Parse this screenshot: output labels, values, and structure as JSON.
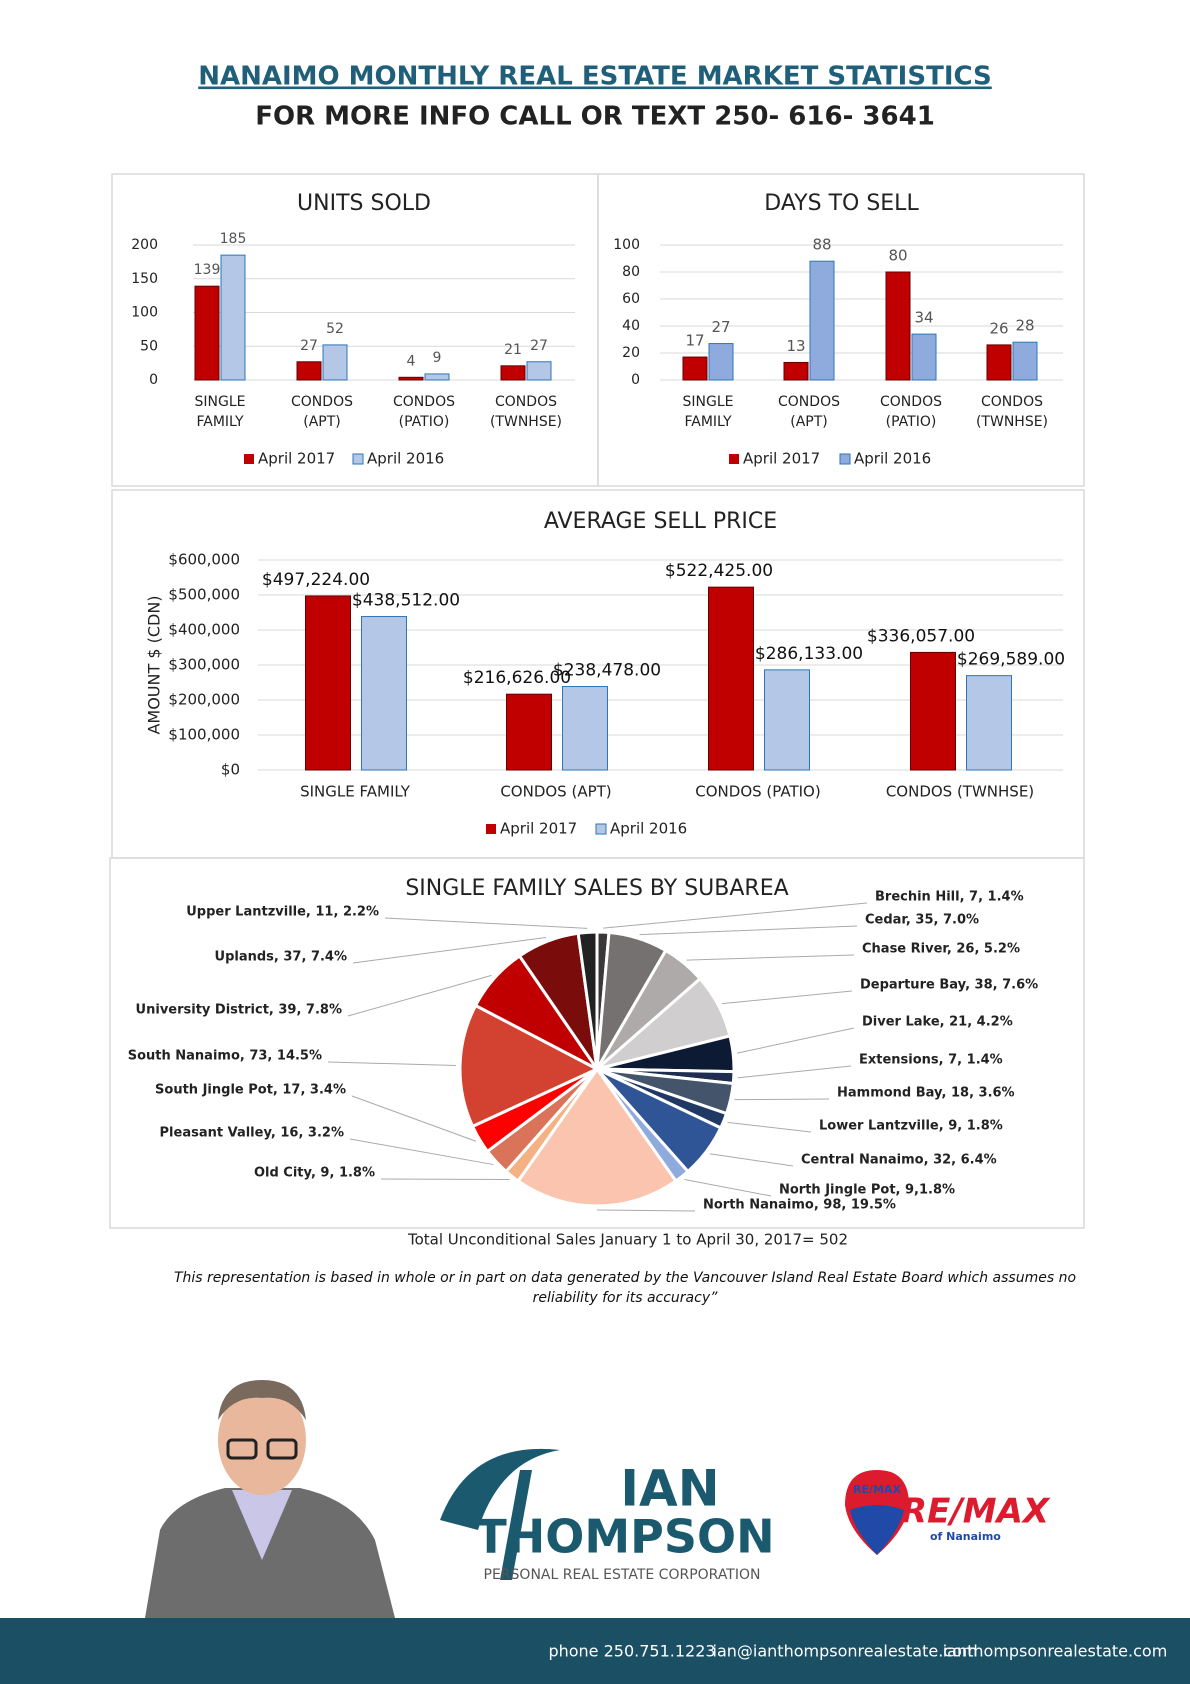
{
  "header": {
    "title": "NANAIMO MONTHLY REAL ESTATE MARKET STATISTICS",
    "subtitle": "FOR MORE INFO CALL OR TEXT 250- 616- 3641"
  },
  "chart_data": [
    {
      "type": "bar",
      "title": "UNITS SOLD",
      "categories": [
        "SINGLE FAMILY",
        "CONDOS (APT)",
        "CONDOS (PATIO)",
        "CONDOS (TWNHSE)"
      ],
      "series": [
        {
          "name": "April 2017",
          "color": "#c00000",
          "values": [
            139,
            27,
            4,
            21
          ]
        },
        {
          "name": "April 2016",
          "color": "#b4c7e7",
          "values": [
            185,
            52,
            9,
            27
          ]
        }
      ],
      "ylim": [
        0,
        200
      ],
      "yticks": [
        0,
        50,
        100,
        150,
        200
      ],
      "grid": true
    },
    {
      "type": "bar",
      "title": "DAYS TO SELL",
      "categories": [
        "SINGLE FAMILY",
        "CONDOS (APT)",
        "CONDOS (PATIO)",
        "CONDOS (TWNHSE)"
      ],
      "series": [
        {
          "name": "April 2017",
          "color": "#c00000",
          "values": [
            17,
            13,
            80,
            26
          ]
        },
        {
          "name": "April 2016",
          "color": "#8faadc",
          "values": [
            27,
            88,
            34,
            28
          ]
        }
      ],
      "ylim": [
        0,
        100
      ],
      "yticks": [
        0,
        20,
        40,
        60,
        80,
        100
      ],
      "grid": true
    },
    {
      "type": "bar",
      "title": "AVERAGE SELL PRICE",
      "y_label": "AMOUNT $ (CDN)",
      "categories": [
        "SINGLE FAMILY",
        "CONDOS (APT)",
        "CONDOS (PATIO)",
        "CONDOS (TWNHSE)"
      ],
      "series": [
        {
          "name": "April 2017",
          "color": "#c00000",
          "values": [
            497224,
            216626,
            522425,
            336057
          ],
          "value_labels": [
            "$497,224.00",
            "$216,626.00",
            "$522,425.00",
            "$336,057.00"
          ]
        },
        {
          "name": "April 2016",
          "color": "#b4c7e7",
          "values": [
            438512,
            238478,
            286133,
            269589
          ],
          "value_labels": [
            "$438,512.00",
            "$238,478.00",
            "$286,133.00",
            "$269,589.00"
          ]
        }
      ],
      "ylim": [
        0,
        600000
      ],
      "yticks": [
        {
          "value": 0,
          "label": "$0"
        },
        {
          "value": 100000,
          "label": "$100,000"
        },
        {
          "value": 200000,
          "label": "$200,000"
        },
        {
          "value": 300000,
          "label": "$300,000"
        },
        {
          "value": 400000,
          "label": "$400,000"
        },
        {
          "value": 500000,
          "label": "$500,000"
        },
        {
          "value": 600000,
          "label": "$600,000"
        }
      ],
      "grid": true
    },
    {
      "type": "pie",
      "title": "SINGLE FAMILY SALES BY SUBAREA",
      "categories": [
        "Brechin Hill",
        "Cedar",
        "Chase River",
        "Departure Bay",
        "Diver Lake",
        "Extensions",
        "Hammond Bay",
        "Lower Lantzville",
        "Central Nanaimo",
        "North Jingle Pot",
        "North Nanaimo",
        "Old City",
        "Pleasant Valley",
        "South Jingle Pot",
        "South Nanaimo",
        "University District",
        "Uplands",
        "Upper Lantzville"
      ],
      "values": [
        7,
        35,
        26,
        38,
        21,
        7,
        18,
        9,
        32,
        9,
        98,
        9,
        16,
        17,
        73,
        39,
        37,
        11
      ],
      "value_labels": [
        "Brechin Hill, 7, 1.4%",
        "Cedar, 35, 7.0%",
        "Chase River, 26, 5.2%",
        "Departure Bay, 38, 7.6%",
        "Diver Lake, 21, 4.2%",
        "Extensions, 7, 1.4%",
        "Hammond Bay, 18, 3.6%",
        "Lower Lantzville, 9, 1.8%",
        "Central Nanaimo, 32, 6.4%",
        "North Jingle Pot, 9,1.8%",
        "North Nanaimo, 98, 19.5%",
        "Old City, 9, 1.8%",
        "Pleasant Valley, 16, 3.2%",
        "South Jingle Pot, 17, 3.4%",
        "South Nanaimo, 73, 14.5%",
        "University District, 39, 7.8%",
        "Uplands, 37, 7.4%",
        "Upper Lantzville, 11, 2.2%"
      ],
      "colors": [
        "#3b3838",
        "#767171",
        "#aeaaaa",
        "#d0cece",
        "#0d1a33",
        "#1f2d4f",
        "#44546a",
        "#1f3864",
        "#2f5597",
        "#8faadc",
        "#fbc4ae",
        "#f4b183",
        "#d9735a",
        "#ff0000",
        "#d34130",
        "#c00000",
        "#7b0c0c",
        "#222222"
      ]
    }
  ],
  "total_note": "Total Unconditional Sales January 1 to April 30, 2017= 502",
  "disclaimer": "This representation is based in whole or in part on data generated by the Vancouver Island Real Estate Board which assumes no reliability for its accuracy”",
  "branding": {
    "name_1": "IAN",
    "name_2": "THOMPSON",
    "tagline": "PERSONAL REAL ESTATE CORPORATION",
    "phone": "phone 250.751.1223",
    "email": "ian@ianthompsonrealestate.com",
    "website": "ianthompsonrealestate.com",
    "logo_balloon": "RE/MAX",
    "logo": "RE/MAX",
    "logo_sub": "of Nanaimo"
  }
}
